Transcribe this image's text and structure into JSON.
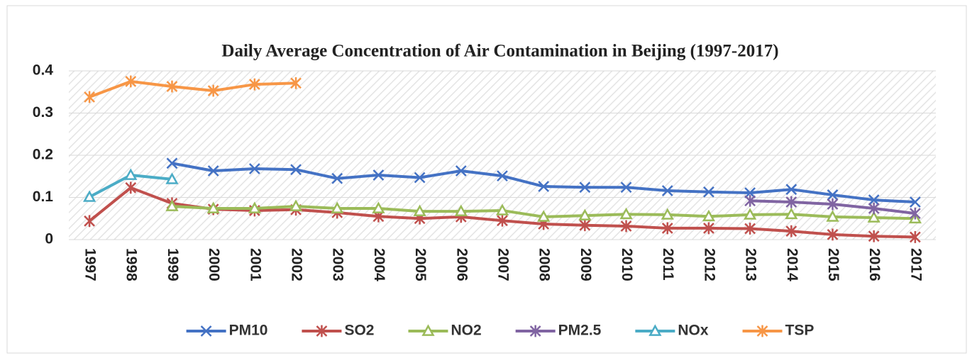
{
  "chart_data": {
    "type": "line",
    "title": "Daily Average Concentration of Air Contamination in Beijing (1997-2017)",
    "categories": [
      "1997",
      "1998",
      "1999",
      "2000",
      "2001",
      "2002",
      "2003",
      "2004",
      "2005",
      "2006",
      "2007",
      "2008",
      "2009",
      "2010",
      "2011",
      "2012",
      "2013",
      "2014",
      "2015",
      "2016",
      "2017"
    ],
    "series": [
      {
        "name": "PM10",
        "color": "#4472c4",
        "marker": "x",
        "values": [
          null,
          null,
          0.181,
          0.163,
          0.168,
          0.166,
          0.145,
          0.153,
          0.147,
          0.163,
          0.151,
          0.126,
          0.124,
          0.124,
          0.116,
          0.113,
          0.111,
          0.119,
          0.106,
          0.094,
          0.089
        ]
      },
      {
        "name": "SO2",
        "color": "#c0504d",
        "marker": "star",
        "values": [
          0.044,
          0.123,
          0.086,
          0.072,
          0.069,
          0.071,
          0.064,
          0.055,
          0.05,
          0.054,
          0.045,
          0.037,
          0.034,
          0.032,
          0.027,
          0.027,
          0.026,
          0.02,
          0.012,
          0.008,
          0.006
        ]
      },
      {
        "name": "NO2",
        "color": "#9bbb59",
        "marker": "triangle",
        "values": [
          null,
          null,
          0.079,
          0.074,
          0.074,
          0.079,
          0.074,
          0.074,
          0.067,
          0.067,
          0.069,
          0.054,
          0.057,
          0.06,
          0.059,
          0.055,
          0.059,
          0.06,
          0.054,
          0.052,
          0.05
        ]
      },
      {
        "name": "PM2.5",
        "color": "#8064a2",
        "marker": "star",
        "values": [
          null,
          null,
          null,
          null,
          null,
          null,
          null,
          null,
          null,
          null,
          null,
          null,
          null,
          null,
          null,
          null,
          0.092,
          0.089,
          0.084,
          0.074,
          0.062
        ]
      },
      {
        "name": "NOx",
        "color": "#4bacc6",
        "marker": "triangle",
        "values": [
          0.101,
          0.153,
          0.143,
          null,
          null,
          null,
          null,
          null,
          null,
          null,
          null,
          null,
          null,
          null,
          null,
          null,
          null,
          null,
          null,
          null,
          null
        ]
      },
      {
        "name": "TSP",
        "color": "#f79646",
        "marker": "star",
        "values": [
          0.338,
          0.375,
          0.363,
          0.353,
          0.368,
          0.371,
          null,
          null,
          null,
          null,
          null,
          null,
          null,
          null,
          null,
          null,
          null,
          null,
          null,
          null,
          null
        ]
      }
    ],
    "ylim": [
      0,
      0.4
    ],
    "yticks": [
      0,
      0.1,
      0.2,
      0.3,
      0.4
    ],
    "grid": true,
    "legend": "bottom"
  }
}
